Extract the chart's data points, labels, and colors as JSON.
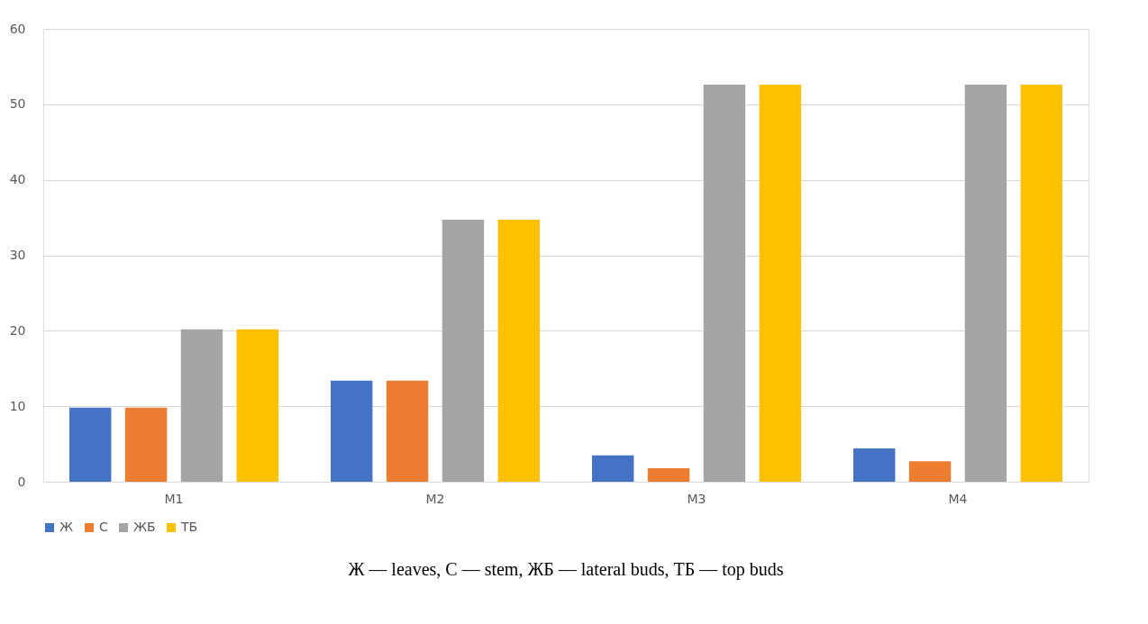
{
  "chart_data": {
    "type": "bar",
    "categories": [
      "M1",
      "M2",
      "M3",
      "M4"
    ],
    "series": [
      {
        "name": "Ж",
        "color": "#4472c4",
        "values": [
          9.8,
          13.4,
          3.5,
          4.4
        ]
      },
      {
        "name": "С",
        "color": "#ed7d31",
        "values": [
          9.8,
          13.4,
          1.8,
          2.7
        ]
      },
      {
        "name": "ЖБ",
        "color": "#a5a5a5",
        "values": [
          20.2,
          34.7,
          52.6,
          52.6
        ]
      },
      {
        "name": "ТБ",
        "color": "#ffc000",
        "values": [
          20.2,
          34.7,
          52.6,
          52.6
        ]
      }
    ],
    "ylim": [
      0,
      60
    ],
    "yticks": [
      0,
      10,
      20,
      30,
      40,
      50,
      60
    ],
    "grid": "y",
    "legend": "bottom",
    "annotations": [
      "Ж — leaves, С — stem, ЖБ — lateral buds, ТБ — top buds"
    ]
  }
}
